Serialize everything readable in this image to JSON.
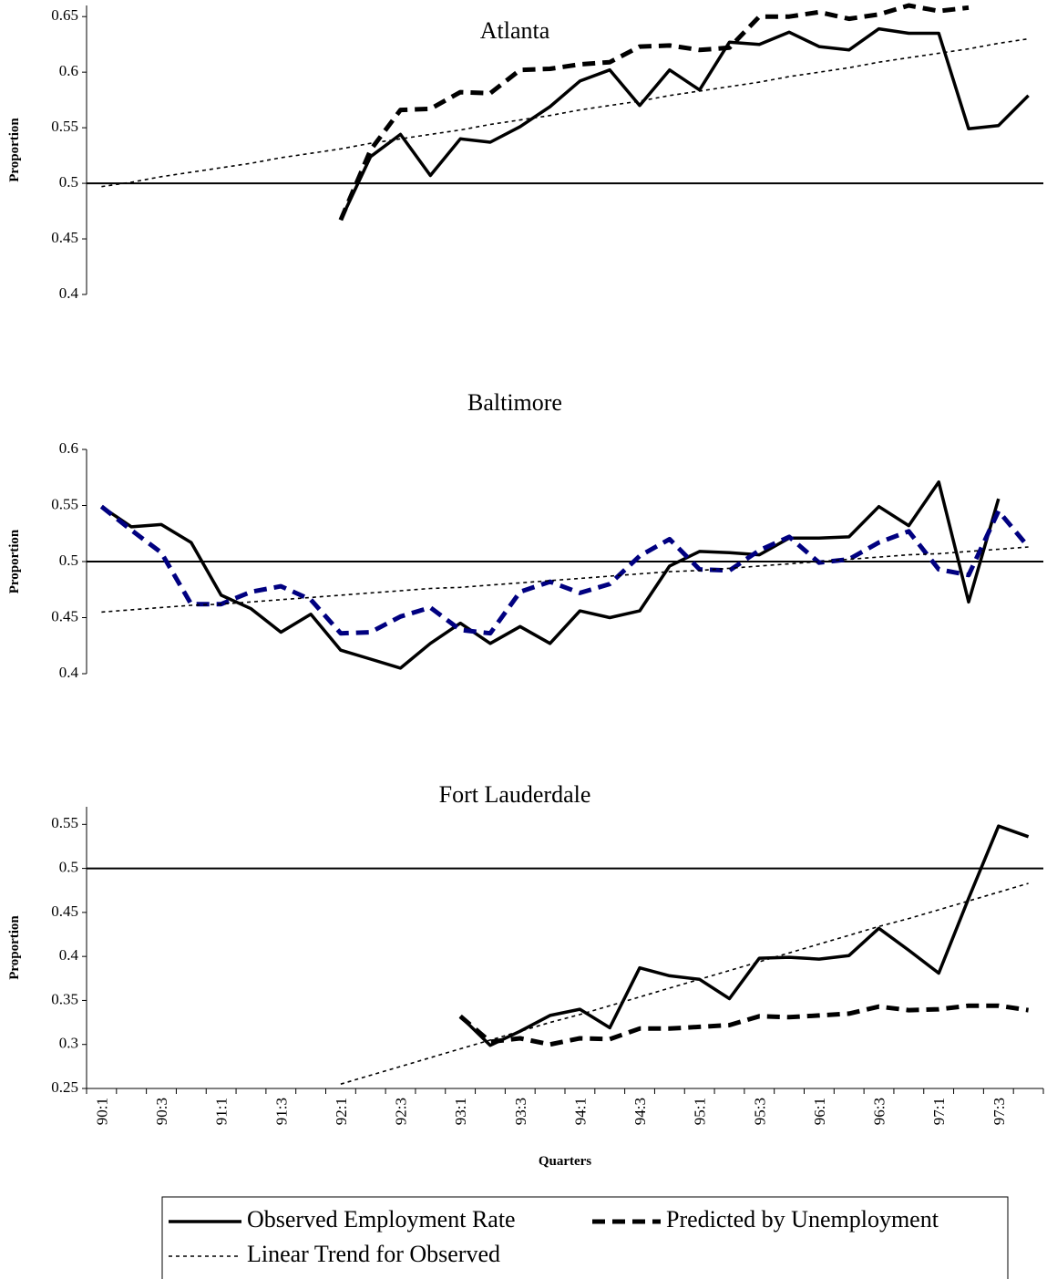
{
  "chart_data": [
    {
      "type": "line",
      "title": "Atlanta",
      "y_label": "Proportion",
      "ylim": [
        0.4,
        0.66
      ],
      "yticks": [
        0.4,
        0.45,
        0.5,
        0.55,
        0.6,
        0.65
      ],
      "hline": 0.5,
      "series": [
        {
          "color": "#000000",
          "style": "solid",
          "values": [
            null,
            null,
            null,
            null,
            null,
            null,
            null,
            null,
            0.467,
            0.524,
            0.544,
            0.507,
            0.54,
            0.537,
            0.551,
            0.569,
            0.592,
            0.602,
            0.57,
            0.602,
            0.584,
            0.627,
            0.625,
            0.636,
            0.623,
            0.62,
            0.639,
            0.635,
            0.635,
            0.549,
            0.552,
            0.579
          ]
        },
        {
          "color": "#000000",
          "style": "dashed",
          "values": [
            null,
            null,
            null,
            null,
            null,
            null,
            null,
            null,
            0.467,
            0.53,
            0.566,
            0.567,
            0.582,
            0.581,
            0.602,
            0.603,
            0.607,
            0.609,
            0.623,
            0.624,
            0.62,
            0.622,
            0.65,
            0.65,
            0.654,
            0.648,
            0.652,
            0.66,
            0.655,
            0.658,
            null,
            null
          ]
        },
        {
          "color": "#000000",
          "style": "dotted",
          "values": [
            0.497,
            0.501,
            0.506,
            0.51,
            0.514,
            0.518,
            0.523,
            0.527,
            0.531,
            0.536,
            0.54,
            0.544,
            0.548,
            0.553,
            0.557,
            0.561,
            0.566,
            0.57,
            0.574,
            0.579,
            0.583,
            0.587,
            0.591,
            0.596,
            0.6,
            0.604,
            0.609,
            0.613,
            0.617,
            0.621,
            0.626,
            0.63
          ]
        }
      ]
    },
    {
      "type": "line",
      "title": "Baltimore",
      "y_label": "Proportion",
      "ylim": [
        0.4,
        0.6
      ],
      "yticks": [
        0.4,
        0.45,
        0.5,
        0.55,
        0.6
      ],
      "hline": 0.5,
      "series": [
        {
          "color": "#000000",
          "style": "solid",
          "values": [
            0.549,
            0.531,
            0.533,
            0.517,
            0.47,
            0.458,
            0.437,
            0.453,
            0.421,
            0.413,
            0.405,
            0.427,
            0.445,
            0.427,
            0.442,
            0.427,
            0.456,
            0.45,
            0.456,
            0.496,
            0.509,
            0.508,
            0.506,
            0.521,
            0.521,
            0.522,
            0.549,
            0.532,
            0.571,
            0.464,
            0.556,
            null
          ]
        },
        {
          "color": "#000080",
          "style": "dashed",
          "values": [
            0.549,
            0.528,
            0.508,
            0.462,
            0.462,
            0.473,
            0.478,
            0.466,
            0.436,
            0.437,
            0.451,
            0.459,
            0.439,
            0.436,
            0.473,
            0.482,
            0.472,
            0.48,
            0.505,
            0.52,
            0.493,
            0.492,
            0.51,
            0.522,
            0.499,
            0.502,
            0.517,
            0.527,
            0.493,
            0.488,
            0.545,
            0.513
          ]
        },
        {
          "color": "#000000",
          "style": "dotted",
          "values": [
            0.455,
            0.457,
            0.459,
            0.461,
            0.462,
            0.464,
            0.466,
            0.468,
            0.47,
            0.472,
            0.474,
            0.476,
            0.477,
            0.479,
            0.481,
            0.483,
            0.485,
            0.487,
            0.489,
            0.491,
            0.492,
            0.494,
            0.496,
            0.498,
            0.5,
            0.502,
            0.504,
            0.506,
            0.507,
            0.509,
            0.511,
            0.513
          ]
        }
      ]
    },
    {
      "type": "line",
      "title": "Fort Lauderdale",
      "y_label": "Proportion",
      "x_label": "Quarters",
      "categories": [
        "90:1",
        null,
        "90:3",
        null,
        "91:1",
        null,
        "91:3",
        null,
        "92:1",
        null,
        "92:3",
        null,
        "93:1",
        null,
        "93:3",
        null,
        "94:1",
        null,
        "94:3",
        null,
        "95:1",
        null,
        "95:3",
        null,
        "96:1",
        null,
        "96:3",
        null,
        "97:1",
        null,
        "97:3",
        null
      ],
      "ylim": [
        0.25,
        0.57
      ],
      "yticks": [
        0.25,
        0.3,
        0.35,
        0.4,
        0.45,
        0.5,
        0.55
      ],
      "hline": 0.5,
      "series": [
        {
          "color": "#000000",
          "style": "solid",
          "values": [
            null,
            null,
            null,
            null,
            null,
            null,
            null,
            null,
            null,
            null,
            null,
            null,
            0.332,
            0.299,
            0.315,
            0.333,
            0.34,
            0.319,
            0.387,
            0.378,
            0.374,
            0.352,
            0.398,
            0.399,
            0.397,
            0.401,
            0.432,
            0.407,
            0.381,
            0.466,
            0.548,
            0.536
          ]
        },
        {
          "color": "#000000",
          "style": "dashed",
          "values": [
            null,
            null,
            null,
            null,
            null,
            null,
            null,
            null,
            null,
            null,
            null,
            null,
            0.332,
            0.303,
            0.307,
            0.3,
            0.307,
            0.306,
            0.318,
            0.318,
            0.32,
            0.322,
            0.332,
            0.331,
            0.333,
            0.335,
            0.343,
            0.339,
            0.34,
            0.344,
            0.344,
            0.339
          ]
        },
        {
          "color": "#000000",
          "style": "dotted",
          "values": [
            null,
            null,
            null,
            null,
            null,
            null,
            null,
            null,
            0.255,
            0.265,
            0.275,
            0.285,
            0.295,
            0.305,
            0.315,
            0.325,
            0.334,
            0.344,
            0.354,
            0.364,
            0.374,
            0.384,
            0.394,
            0.404,
            0.414,
            0.424,
            0.434,
            0.443,
            0.453,
            0.463,
            0.473,
            0.483
          ]
        }
      ]
    }
  ],
  "legend": {
    "entries": [
      {
        "name": "Observed Employment Rate",
        "style": "solid",
        "color": "#000000"
      },
      {
        "name": "Predicted by Unemployment",
        "style": "dashed",
        "color": "#000000"
      },
      {
        "name": "Linear Trend for Observed",
        "style": "dotted",
        "color": "#000000"
      }
    ]
  }
}
